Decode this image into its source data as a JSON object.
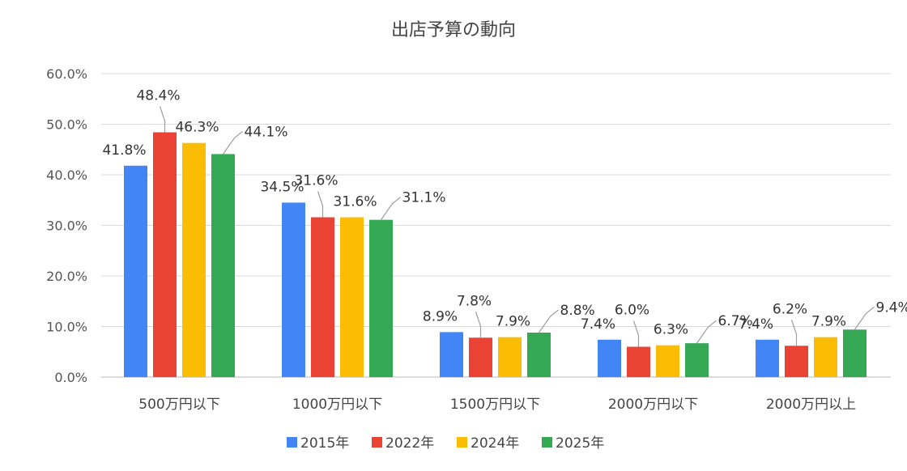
{
  "chart_data": {
    "type": "bar",
    "title": "出店予算の動向",
    "xlabel": "",
    "ylabel": "",
    "ylim": [
      0,
      60
    ],
    "yticks": [
      "0.0%",
      "10.0%",
      "20.0%",
      "30.0%",
      "40.0%",
      "50.0%",
      "60.0%"
    ],
    "grid": true,
    "legend": "bottom",
    "categories": [
      "500万円以下",
      "1000万円以下",
      "1500万円以下",
      "2000万円以下",
      "2000万円以上"
    ],
    "series": [
      {
        "name": "2015年",
        "color": "#4285F4",
        "values": [
          41.8,
          34.5,
          8.9,
          7.4,
          7.4
        ],
        "labels": [
          "41.8%",
          "34.5%",
          "8.9%",
          "7.4%",
          "7.4%"
        ]
      },
      {
        "name": "2022年",
        "color": "#EA4335",
        "values": [
          48.4,
          31.6,
          7.8,
          6.0,
          6.2
        ],
        "labels": [
          "48.4%",
          "31.6%",
          "7.8%",
          "6.0%",
          "6.2%"
        ]
      },
      {
        "name": "2024年",
        "color": "#FBBC04",
        "values": [
          46.3,
          31.6,
          7.9,
          6.3,
          7.9
        ],
        "labels": [
          "46.3%",
          "31.6%",
          "7.9%",
          "6.3%",
          "7.9%"
        ]
      },
      {
        "name": "2025年",
        "color": "#34A853",
        "values": [
          44.1,
          31.1,
          8.8,
          6.7,
          9.4
        ],
        "labels": [
          "44.1%",
          "31.1%",
          "8.8%",
          "6.7%",
          "9.4%"
        ]
      }
    ]
  }
}
